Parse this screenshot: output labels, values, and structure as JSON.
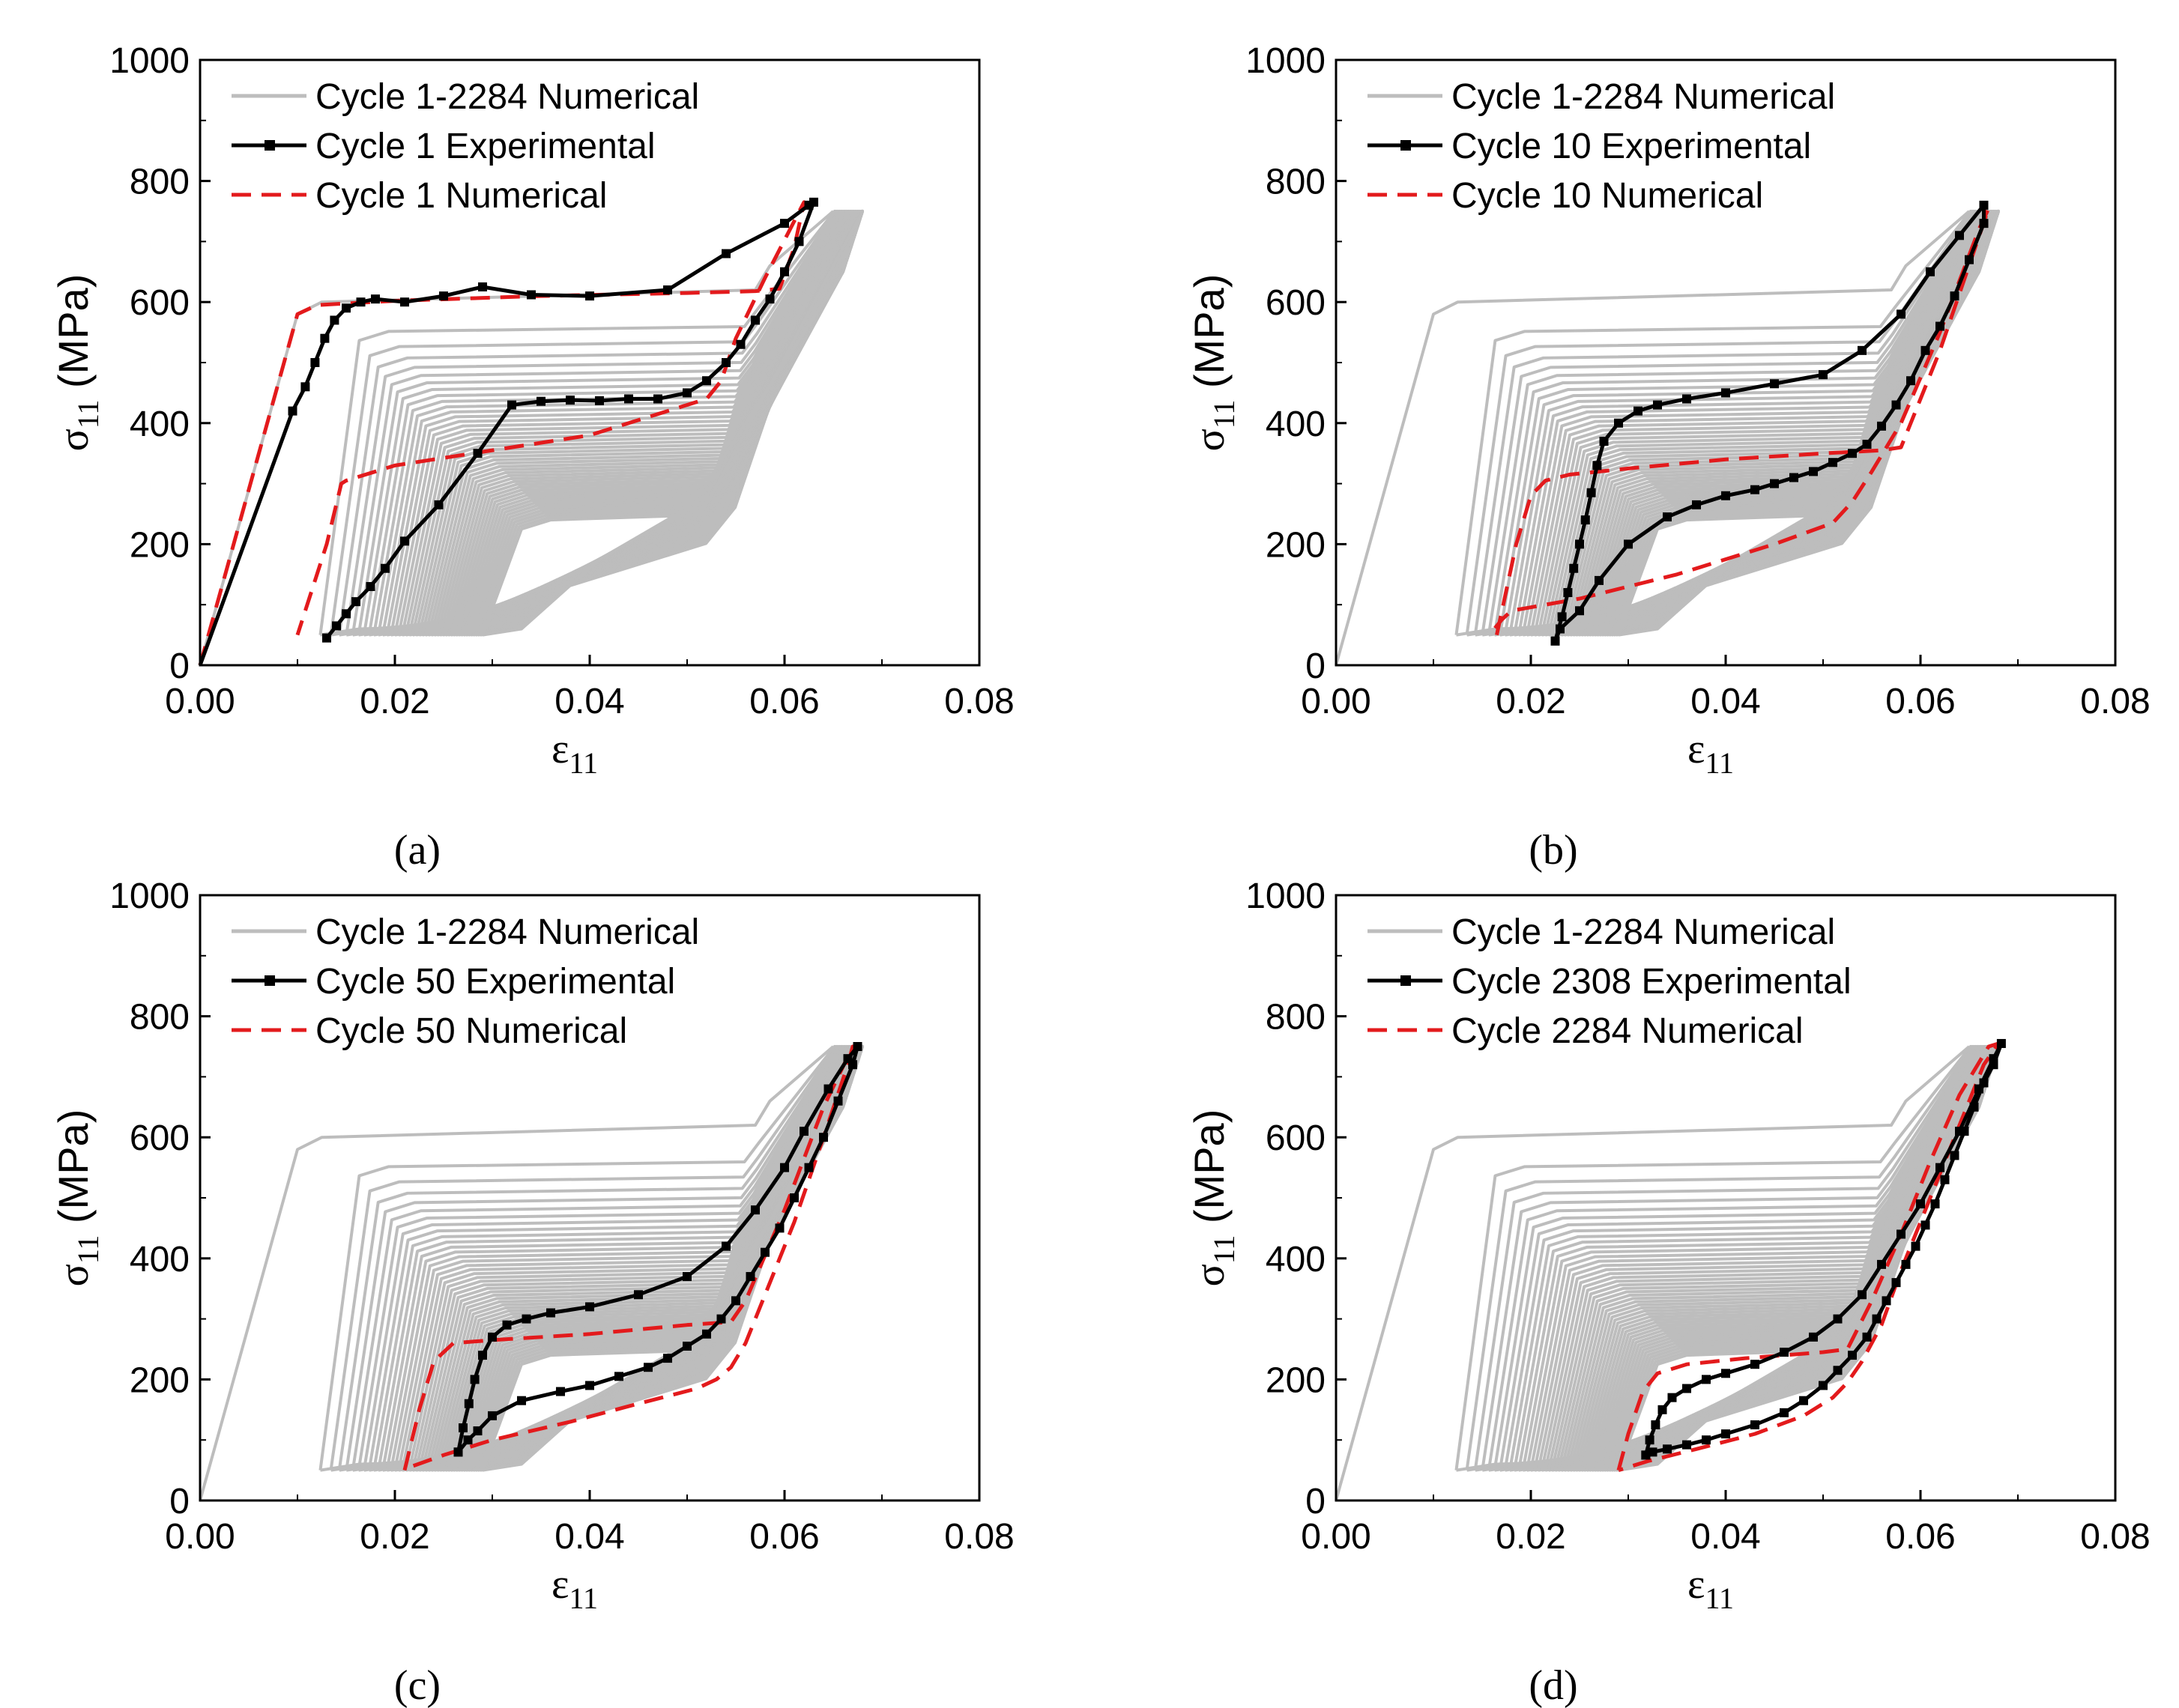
{
  "colors": {
    "numerical_all": "#bdbdbd",
    "experimental": "#000000",
    "numerical": "#e31a1c",
    "axis": "#000000"
  },
  "chart_data": [
    {
      "type": "line",
      "panel_label": "(a)",
      "xlabel": "ε",
      "xlabel_sub": "11",
      "ylabel_prefix": "σ",
      "ylabel_sub": "11",
      "ylabel_suffix": " (MPa)",
      "xlim": [
        0,
        0.08
      ],
      "ylim": [
        0,
        1000
      ],
      "x_ticks": [
        0,
        0.02,
        0.04,
        0.06,
        0.08
      ],
      "x_tick_labels": [
        "0.00",
        "0.02",
        "0.04",
        "0.06",
        "0.08"
      ],
      "y_ticks": [
        0,
        200,
        400,
        600,
        800,
        1000
      ],
      "y_tick_labels": [
        "0",
        "200",
        "400",
        "600",
        "800",
        "1000"
      ],
      "legend": [
        "Cycle 1-2284 Numerical",
        "Cycle 1 Experimental",
        "Cycle 1 Numerical"
      ],
      "experimental": {
        "x": [
          0.0,
          0.0095,
          0.0108,
          0.0118,
          0.0128,
          0.0138,
          0.015,
          0.0165,
          0.018,
          0.021,
          0.025,
          0.029,
          0.034,
          0.04,
          0.048,
          0.054,
          0.06,
          0.0625,
          0.063,
          0.0615,
          0.06,
          0.0585,
          0.057,
          0.0555,
          0.054,
          0.052,
          0.05,
          0.047,
          0.044,
          0.041,
          0.038,
          0.035,
          0.032,
          0.0285,
          0.0245,
          0.021,
          0.019,
          0.0175,
          0.016,
          0.015,
          0.014,
          0.013
        ],
        "y": [
          0,
          420,
          460,
          500,
          540,
          570,
          590,
          600,
          605,
          600,
          610,
          625,
          612,
          610,
          620,
          680,
          730,
          760,
          765,
          700,
          650,
          605,
          570,
          530,
          500,
          470,
          450,
          440,
          440,
          437,
          438,
          436,
          430,
          350,
          265,
          205,
          160,
          130,
          105,
          85,
          65,
          45
        ]
      },
      "numerical": {
        "x": [
          0.0,
          0.01,
          0.012,
          0.02,
          0.035,
          0.05,
          0.057,
          0.0595,
          0.061,
          0.062,
          0.058,
          0.055,
          0.0535,
          0.052,
          0.04,
          0.02,
          0.015,
          0.0145,
          0.013,
          0.01
        ],
        "y": [
          0,
          580,
          595,
          602,
          610,
          615,
          618,
          622,
          690,
          765,
          640,
          540,
          470,
          440,
          380,
          330,
          305,
          300,
          200,
          50
        ]
      }
    },
    {
      "type": "line",
      "panel_label": "(b)",
      "xlabel": "ε",
      "xlabel_sub": "11",
      "ylabel_prefix": "σ",
      "ylabel_sub": "11",
      "ylabel_suffix": " (MPa)",
      "xlim": [
        0,
        0.08
      ],
      "ylim": [
        0,
        1000
      ],
      "x_ticks": [
        0,
        0.02,
        0.04,
        0.06,
        0.08
      ],
      "x_tick_labels": [
        "0.00",
        "0.02",
        "0.04",
        "0.06",
        "0.08"
      ],
      "y_ticks": [
        0,
        200,
        400,
        600,
        800,
        1000
      ],
      "y_tick_labels": [
        "0",
        "200",
        "400",
        "600",
        "800",
        "1000"
      ],
      "legend": [
        "Cycle 1-2284 Numerical",
        "Cycle 10 Experimental",
        "Cycle 10 Numerical"
      ],
      "experimental": {
        "x": [
          0.0225,
          0.0232,
          0.0238,
          0.0244,
          0.025,
          0.0256,
          0.0262,
          0.0268,
          0.0275,
          0.029,
          0.031,
          0.033,
          0.036,
          0.04,
          0.045,
          0.05,
          0.054,
          0.058,
          0.061,
          0.064,
          0.0665,
          0.0665,
          0.065,
          0.0635,
          0.062,
          0.0605,
          0.059,
          0.0575,
          0.056,
          0.0545,
          0.053,
          0.051,
          0.049,
          0.047,
          0.045,
          0.043,
          0.04,
          0.037,
          0.034,
          0.03,
          0.027,
          0.025,
          0.023,
          0.0225
        ],
        "y": [
          40,
          80,
          120,
          160,
          200,
          240,
          285,
          330,
          370,
          400,
          420,
          430,
          440,
          450,
          465,
          480,
          520,
          580,
          650,
          710,
          760,
          730,
          670,
          610,
          560,
          520,
          470,
          430,
          395,
          365,
          350,
          335,
          320,
          310,
          300,
          290,
          280,
          265,
          245,
          200,
          140,
          90,
          60,
          40
        ]
      },
      "numerical": {
        "x": [
          0.0165,
          0.0185,
          0.02,
          0.0215,
          0.024,
          0.03,
          0.04,
          0.05,
          0.056,
          0.058,
          0.062,
          0.067,
          0.066,
          0.062,
          0.058,
          0.055,
          0.053,
          0.051,
          0.045,
          0.035,
          0.025,
          0.018,
          0.017,
          0.016
        ],
        "y": [
          50,
          200,
          280,
          305,
          315,
          325,
          340,
          350,
          355,
          360,
          520,
          755,
          720,
          550,
          400,
          320,
          270,
          235,
          200,
          150,
          110,
          90,
          75,
          55
        ]
      }
    },
    {
      "type": "line",
      "panel_label": "(c)",
      "xlabel": "ε",
      "xlabel_sub": "11",
      "ylabel_prefix": "σ",
      "ylabel_sub": "11",
      "ylabel_suffix": " (MPa)",
      "xlim": [
        0,
        0.08
      ],
      "ylim": [
        0,
        1000
      ],
      "x_ticks": [
        0,
        0.02,
        0.04,
        0.06,
        0.08
      ],
      "x_tick_labels": [
        "0.00",
        "0.02",
        "0.04",
        "0.06",
        "0.08"
      ],
      "y_ticks": [
        0,
        200,
        400,
        600,
        800,
        1000
      ],
      "y_tick_labels": [
        "0",
        "200",
        "400",
        "600",
        "800",
        "1000"
      ],
      "legend": [
        "Cycle 1-2284 Numerical",
        "Cycle 50 Experimental",
        "Cycle 50 Numerical"
      ],
      "experimental": {
        "x": [
          0.0265,
          0.027,
          0.0276,
          0.0282,
          0.029,
          0.03,
          0.0315,
          0.0335,
          0.036,
          0.04,
          0.045,
          0.05,
          0.054,
          0.057,
          0.06,
          0.062,
          0.0645,
          0.0665,
          0.0675,
          0.067,
          0.0655,
          0.064,
          0.0625,
          0.061,
          0.0595,
          0.058,
          0.0565,
          0.055,
          0.0535,
          0.052,
          0.05,
          0.048,
          0.046,
          0.043,
          0.04,
          0.037,
          0.033,
          0.03,
          0.0285,
          0.0275,
          0.0265
        ],
        "y": [
          80,
          120,
          160,
          200,
          240,
          270,
          290,
          300,
          310,
          320,
          340,
          370,
          420,
          480,
          550,
          610,
          680,
          730,
          750,
          720,
          660,
          600,
          550,
          500,
          450,
          410,
          370,
          330,
          300,
          275,
          255,
          235,
          220,
          205,
          190,
          180,
          165,
          140,
          115,
          100,
          80
        ]
      },
      "numerical": {
        "x": [
          0.021,
          0.0225,
          0.024,
          0.026,
          0.03,
          0.04,
          0.05,
          0.0545,
          0.056,
          0.06,
          0.064,
          0.067,
          0.0665,
          0.064,
          0.061,
          0.058,
          0.056,
          0.0545,
          0.053,
          0.051,
          0.045,
          0.038,
          0.03,
          0.025,
          0.0215
        ],
        "y": [
          50,
          150,
          230,
          260,
          265,
          275,
          290,
          295,
          330,
          480,
          650,
          750,
          720,
          600,
          460,
          340,
          260,
          220,
          200,
          185,
          160,
          130,
          100,
          75,
          55
        ]
      }
    },
    {
      "type": "line",
      "panel_label": "(d)",
      "xlabel": "ε",
      "xlabel_sub": "11",
      "ylabel_prefix": "σ",
      "ylabel_sub": "11",
      "ylabel_suffix": " (MPa)",
      "xlim": [
        0,
        0.08
      ],
      "ylim": [
        0,
        1000
      ],
      "x_ticks": [
        0,
        0.02,
        0.04,
        0.06,
        0.08
      ],
      "x_tick_labels": [
        "0.00",
        "0.02",
        "0.04",
        "0.06",
        "0.08"
      ],
      "y_ticks": [
        0,
        200,
        400,
        600,
        800,
        1000
      ],
      "y_tick_labels": [
        "0",
        "200",
        "400",
        "600",
        "800",
        "1000"
      ],
      "legend": [
        "Cycle 1-2284 Numerical",
        "Cycle 2308 Experimental",
        "Cycle 2284 Numerical"
      ],
      "experimental": {
        "x": [
          0.0318,
          0.0322,
          0.0328,
          0.0335,
          0.0345,
          0.036,
          0.038,
          0.04,
          0.043,
          0.046,
          0.049,
          0.0515,
          0.054,
          0.056,
          0.058,
          0.06,
          0.062,
          0.064,
          0.066,
          0.0675,
          0.0683,
          0.0675,
          0.0665,
          0.0655,
          0.0645,
          0.0635,
          0.0625,
          0.0615,
          0.0605,
          0.0595,
          0.0585,
          0.0575,
          0.0565,
          0.0555,
          0.0545,
          0.053,
          0.0515,
          0.05,
          0.048,
          0.046,
          0.043,
          0.04,
          0.038,
          0.036,
          0.034,
          0.0325,
          0.0318
        ],
        "y": [
          75,
          100,
          125,
          150,
          170,
          185,
          200,
          210,
          225,
          245,
          270,
          300,
          340,
          390,
          440,
          490,
          550,
          610,
          680,
          730,
          755,
          720,
          690,
          650,
          610,
          570,
          530,
          490,
          455,
          420,
          390,
          360,
          330,
          300,
          270,
          240,
          215,
          190,
          165,
          145,
          125,
          110,
          100,
          92,
          85,
          80,
          75
        ]
      },
      "numerical": {
        "x": [
          0.029,
          0.03,
          0.0315,
          0.033,
          0.036,
          0.042,
          0.05,
          0.0525,
          0.055,
          0.058,
          0.061,
          0.064,
          0.067,
          0.068,
          0.0665,
          0.064,
          0.061,
          0.058,
          0.056,
          0.054,
          0.0525,
          0.051,
          0.048,
          0.043,
          0.037,
          0.032,
          0.029
        ],
        "y": [
          50,
          110,
          180,
          210,
          225,
          235,
          245,
          250,
          330,
          440,
          560,
          670,
          750,
          755,
          720,
          620,
          500,
          380,
          290,
          230,
          195,
          170,
          140,
          110,
          85,
          65,
          50
        ]
      }
    }
  ]
}
